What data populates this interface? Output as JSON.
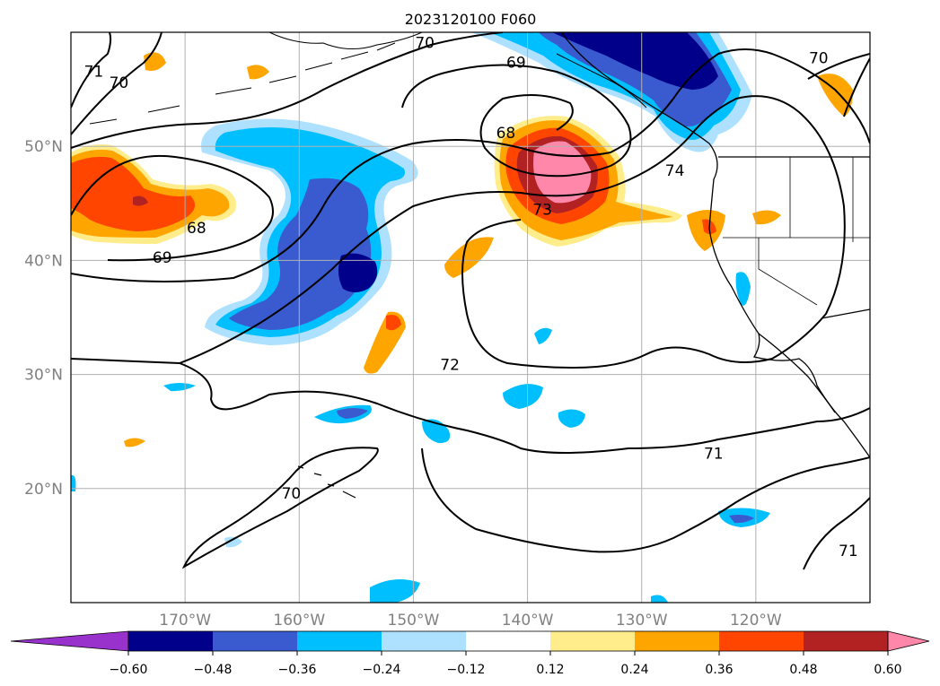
{
  "title": "2023120100 F060",
  "map": {
    "lon_range": [
      -180,
      -110
    ],
    "lat_range": [
      10,
      60
    ],
    "projection": "PlateCarree",
    "grid": true,
    "lon_ticks": [
      {
        "value": -170,
        "label": "170°W"
      },
      {
        "value": -160,
        "label": "160°W"
      },
      {
        "value": -150,
        "label": "150°W"
      },
      {
        "value": -140,
        "label": "140°W"
      },
      {
        "value": -130,
        "label": "130°W"
      },
      {
        "value": -120,
        "label": "120°W"
      }
    ],
    "lat_ticks": [
      {
        "value": 50,
        "label": "50°N"
      },
      {
        "value": 40,
        "label": "40°N"
      },
      {
        "value": 30,
        "label": "30°N"
      },
      {
        "value": 20,
        "label": "20°N"
      }
    ],
    "contour_labels": [
      {
        "text": "71",
        "lon": -178.0,
        "lat": 56.5
      },
      {
        "text": "70",
        "lon": -175.8,
        "lat": 55.5
      },
      {
        "text": "70",
        "lon": -149.0,
        "lat": 59.0
      },
      {
        "text": "69",
        "lon": -141.0,
        "lat": 57.3
      },
      {
        "text": "68",
        "lon": -141.9,
        "lat": 51.1
      },
      {
        "text": "73",
        "lon": -138.7,
        "lat": 44.4
      },
      {
        "text": "74",
        "lon": -127.1,
        "lat": 47.8
      },
      {
        "text": "70",
        "lon": -114.5,
        "lat": 57.7
      },
      {
        "text": "68",
        "lon": -169.0,
        "lat": 42.8
      },
      {
        "text": "69",
        "lon": -172.0,
        "lat": 40.2
      },
      {
        "text": "72",
        "lon": -146.8,
        "lat": 30.8
      },
      {
        "text": "71",
        "lon": -123.7,
        "lat": 23.0
      },
      {
        "text": "70",
        "lon": -160.7,
        "lat": 19.5
      },
      {
        "text": "71",
        "lon": -111.9,
        "lat": 14.5
      }
    ]
  },
  "colorbar": {
    "extend": "both",
    "ticks": [
      "−0.60",
      "−0.48",
      "−0.36",
      "−0.24",
      "−0.12",
      "0.12",
      "0.24",
      "0.36",
      "0.48",
      "0.60"
    ],
    "colors": [
      "#9932CC",
      "#00008B",
      "#3A5BCF",
      "#00BFFF",
      "#ADE1FF",
      "#FFFFFF",
      "#FFEC8B",
      "#FFA500",
      "#FF4500",
      "#B22222",
      "#FF88AA"
    ]
  }
}
